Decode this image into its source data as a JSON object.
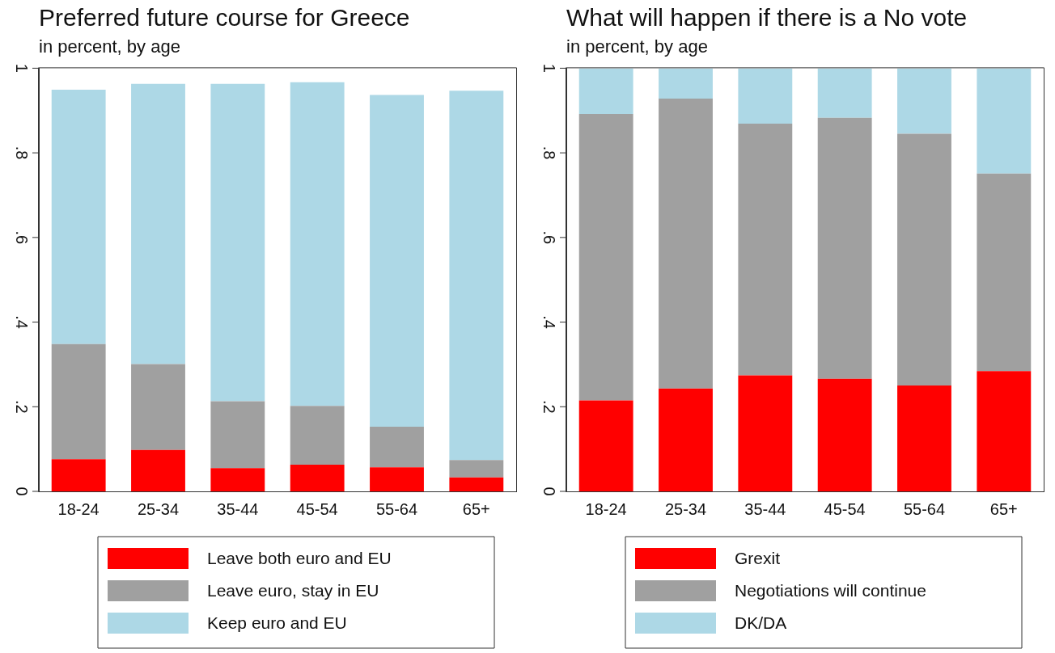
{
  "chart_data": [
    {
      "type": "bar",
      "title": "Preferred future course for Greece",
      "subtitle": "in percent, by age",
      "categories": [
        "18-24",
        "25-34",
        "35-44",
        "45-54",
        "55-64",
        "65+"
      ],
      "stacked": true,
      "legend": "bottom",
      "grid": false,
      "ylim": [
        0,
        1
      ],
      "yticks": [
        {
          "value": 0,
          "label": "0"
        },
        {
          "value": 0.2,
          "label": ".2"
        },
        {
          "value": 0.4,
          "label": ".4"
        },
        {
          "value": 0.6,
          "label": ".6"
        },
        {
          "value": 0.8,
          "label": ".8"
        },
        {
          "value": 1,
          "label": "1"
        }
      ],
      "series": [
        {
          "name": "Leave both euro and EU",
          "color": "#ff0000",
          "values": [
            0.076,
            0.098,
            0.055,
            0.063,
            0.057,
            0.033
          ]
        },
        {
          "name": "Leave euro, stay in EU",
          "color": "#a0a0a0",
          "values": [
            0.272,
            0.203,
            0.158,
            0.139,
            0.096,
            0.041
          ]
        },
        {
          "name": "Keep euro and EU",
          "color": "#add8e6",
          "values": [
            0.601,
            0.662,
            0.75,
            0.765,
            0.784,
            0.873
          ]
        }
      ]
    },
    {
      "type": "bar",
      "title": "What will happen if there is a No vote",
      "subtitle": "in percent, by age",
      "categories": [
        "18-24",
        "25-34",
        "35-44",
        "45-54",
        "55-64",
        "65+"
      ],
      "stacked": true,
      "legend": "bottom",
      "grid": false,
      "ylim": [
        0,
        1
      ],
      "yticks": [
        {
          "value": 0,
          "label": "0"
        },
        {
          "value": 0.2,
          "label": ".2"
        },
        {
          "value": 0.4,
          "label": ".4"
        },
        {
          "value": 0.6,
          "label": ".6"
        },
        {
          "value": 0.8,
          "label": ".8"
        },
        {
          "value": 1,
          "label": "1"
        }
      ],
      "series": [
        {
          "name": "Grexit",
          "color": "#ff0000",
          "values": [
            0.215,
            0.243,
            0.274,
            0.266,
            0.25,
            0.284
          ]
        },
        {
          "name": "Negotiations will continue",
          "color": "#a0a0a0",
          "values": [
            0.677,
            0.685,
            0.595,
            0.617,
            0.595,
            0.467
          ]
        },
        {
          "name": "DK/DA",
          "color": "#add8e6",
          "values": [
            0.108,
            0.072,
            0.131,
            0.117,
            0.155,
            0.249
          ]
        }
      ]
    }
  ]
}
